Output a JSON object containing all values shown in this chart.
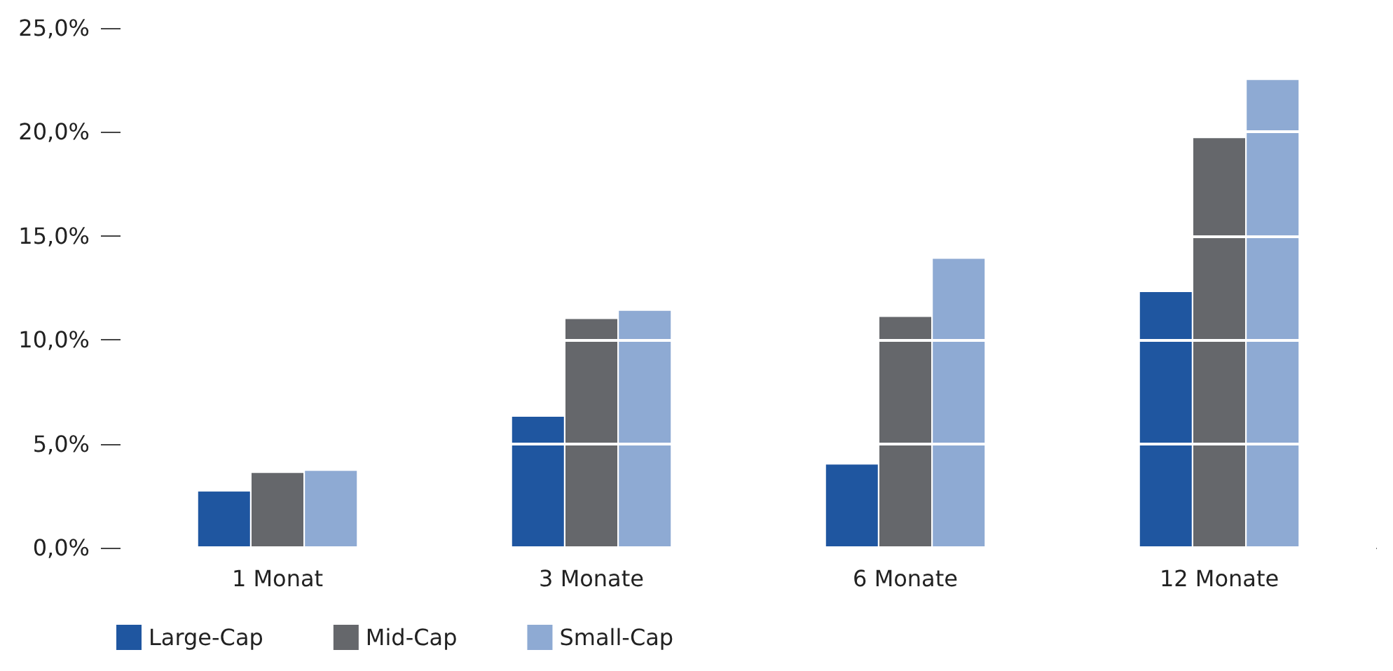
{
  "chart_data": {
    "type": "bar",
    "categories": [
      "1 Monat",
      "3 Monate",
      "6 Monate",
      "12 Monate"
    ],
    "series": [
      {
        "name": "Large-Cap",
        "color": "#1f56a0",
        "values": [
          2.7,
          6.3,
          4.0,
          12.3
        ]
      },
      {
        "name": "Mid-Cap",
        "color": "#65676b",
        "values": [
          3.6,
          11.0,
          11.1,
          19.7
        ]
      },
      {
        "name": "Small-Cap",
        "color": "#8eaad3",
        "values": [
          3.7,
          11.4,
          13.9,
          22.5
        ]
      }
    ],
    "ylim": [
      0,
      25
    ],
    "yticks": [
      {
        "value": 0,
        "label": "0,0%"
      },
      {
        "value": 5,
        "label": "5,0%"
      },
      {
        "value": 10,
        "label": "10,0%"
      },
      {
        "value": 15,
        "label": "15,0%"
      },
      {
        "value": 20,
        "label": "20,0%"
      },
      {
        "value": 25,
        "label": "25,0%"
      }
    ],
    "grid": "y",
    "legend": "bottom left"
  }
}
